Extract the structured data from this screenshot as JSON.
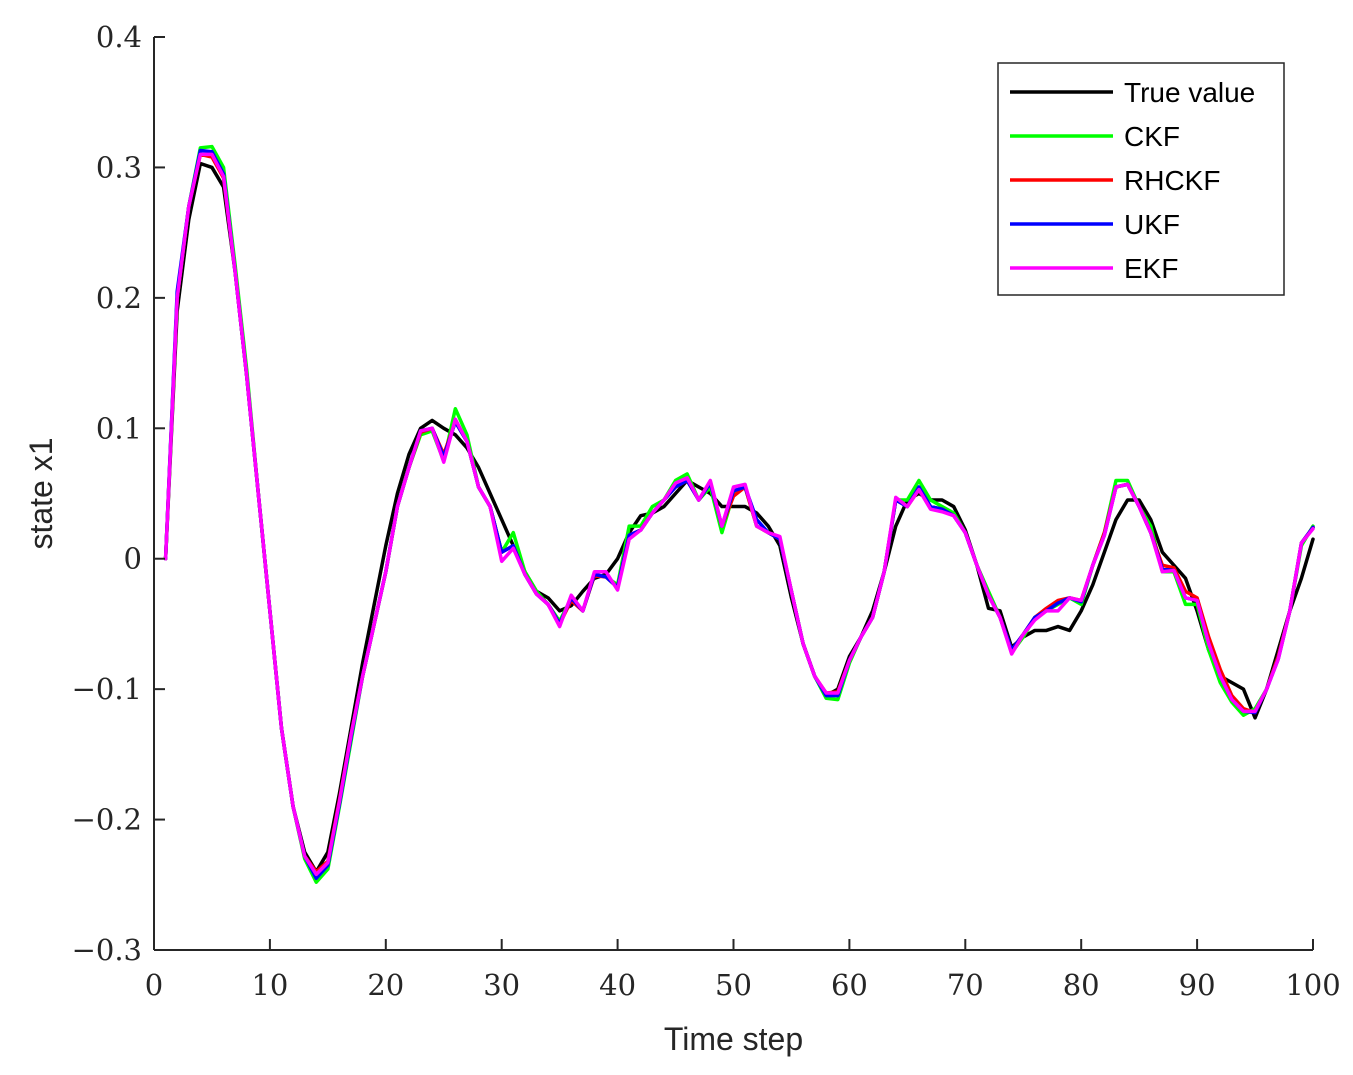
{
  "chart_data": {
    "type": "line",
    "title": "",
    "xlabel": "Time step",
    "ylabel": "state x1",
    "xlim": [
      0,
      100
    ],
    "ylim": [
      -0.3,
      0.4
    ],
    "xticks": [
      0,
      10,
      20,
      30,
      40,
      50,
      60,
      70,
      80,
      90,
      100
    ],
    "yticks": [
      -0.3,
      -0.2,
      -0.1,
      0,
      0.1,
      0.2,
      0.3,
      0.4
    ],
    "xtick_labels": [
      "0",
      "10",
      "20",
      "30",
      "40",
      "50",
      "60",
      "70",
      "80",
      "90",
      "100"
    ],
    "ytick_labels": [
      "−0.3",
      "−0.2",
      "−0.1",
      "0",
      "0.1",
      "0.2",
      "0.3",
      "0.4"
    ],
    "grid": false,
    "legend_position": "top-right",
    "x": [
      1,
      2,
      3,
      4,
      5,
      6,
      7,
      8,
      9,
      10,
      11,
      12,
      13,
      14,
      15,
      16,
      17,
      18,
      19,
      20,
      21,
      22,
      23,
      24,
      25,
      26,
      27,
      28,
      29,
      30,
      31,
      32,
      33,
      34,
      35,
      36,
      37,
      38,
      39,
      40,
      41,
      42,
      43,
      44,
      45,
      46,
      47,
      48,
      49,
      50,
      51,
      52,
      53,
      54,
      55,
      56,
      57,
      58,
      59,
      60,
      61,
      62,
      63,
      64,
      65,
      66,
      67,
      68,
      69,
      70,
      71,
      72,
      73,
      74,
      75,
      76,
      77,
      78,
      79,
      80,
      81,
      82,
      83,
      84,
      85,
      86,
      87,
      88,
      89,
      90,
      91,
      92,
      93,
      94,
      95,
      96,
      97,
      98,
      99,
      100
    ],
    "series": [
      {
        "name": "True value",
        "color": "#000000",
        "values": [
          0,
          0.19,
          0.26,
          0.303,
          0.3,
          0.285,
          0.22,
          0.14,
          0.05,
          -0.04,
          -0.13,
          -0.19,
          -0.225,
          -0.24,
          -0.225,
          -0.18,
          -0.13,
          -0.08,
          -0.035,
          0.01,
          0.05,
          0.08,
          0.1,
          0.106,
          0.1,
          0.095,
          0.085,
          0.07,
          0.05,
          0.03,
          0.01,
          -0.01,
          -0.025,
          -0.03,
          -0.04,
          -0.036,
          -0.025,
          -0.015,
          -0.012,
          0,
          0.02,
          0.033,
          0.035,
          0.04,
          0.05,
          0.06,
          0.055,
          0.05,
          0.04,
          0.04,
          0.04,
          0.035,
          0.025,
          0.01,
          -0.03,
          -0.065,
          -0.09,
          -0.105,
          -0.1,
          -0.075,
          -0.06,
          -0.04,
          -0.01,
          0.025,
          0.045,
          0.05,
          0.045,
          0.045,
          0.04,
          0.022,
          -0.005,
          -0.038,
          -0.04,
          -0.068,
          -0.06,
          -0.055,
          -0.055,
          -0.052,
          -0.055,
          -0.04,
          -0.02,
          0.005,
          0.03,
          0.045,
          0.045,
          0.03,
          0.005,
          -0.005,
          -0.015,
          -0.04,
          -0.07,
          -0.09,
          -0.095,
          -0.1,
          -0.122,
          -0.1,
          -0.07,
          -0.04,
          -0.015,
          0.015
        ]
      },
      {
        "name": "CKF",
        "color": "#00ff00",
        "values": [
          0,
          0.2,
          0.27,
          0.315,
          0.316,
          0.3,
          0.225,
          0.145,
          0.05,
          -0.04,
          -0.13,
          -0.19,
          -0.23,
          -0.248,
          -0.238,
          -0.19,
          -0.14,
          -0.09,
          -0.05,
          -0.01,
          0.04,
          0.07,
          0.095,
          0.098,
          0.075,
          0.115,
          0.095,
          0.055,
          0.04,
          0.005,
          0.02,
          -0.01,
          -0.025,
          -0.035,
          -0.048,
          -0.03,
          -0.04,
          -0.012,
          -0.014,
          -0.02,
          0.025,
          0.025,
          0.04,
          0.045,
          0.06,
          0.065,
          0.045,
          0.055,
          0.02,
          0.05,
          0.055,
          0.025,
          0.02,
          0.015,
          -0.025,
          -0.065,
          -0.09,
          -0.107,
          -0.108,
          -0.08,
          -0.06,
          -0.045,
          -0.01,
          0.045,
          0.045,
          0.06,
          0.045,
          0.04,
          0.035,
          0.02,
          -0.005,
          -0.025,
          -0.045,
          -0.072,
          -0.06,
          -0.045,
          -0.04,
          -0.035,
          -0.03,
          -0.035,
          -0.005,
          0.02,
          0.06,
          0.06,
          0.04,
          0.025,
          -0.01,
          -0.01,
          -0.035,
          -0.035,
          -0.07,
          -0.095,
          -0.11,
          -0.12,
          -0.115,
          -0.1,
          -0.075,
          -0.04,
          0.01,
          0.025
        ]
      },
      {
        "name": "RHCKF",
        "color": "#ff0000",
        "values": [
          0,
          0.2,
          0.27,
          0.31,
          0.308,
          0.292,
          0.22,
          0.14,
          0.05,
          -0.04,
          -0.13,
          -0.19,
          -0.228,
          -0.24,
          -0.232,
          -0.185,
          -0.135,
          -0.09,
          -0.05,
          -0.01,
          0.04,
          0.07,
          0.097,
          0.1,
          0.08,
          0.105,
          0.09,
          0.055,
          0.04,
          0.005,
          0.01,
          -0.012,
          -0.027,
          -0.035,
          -0.05,
          -0.032,
          -0.04,
          -0.013,
          -0.014,
          -0.022,
          0.018,
          0.022,
          0.035,
          0.045,
          0.055,
          0.06,
          0.045,
          0.058,
          0.025,
          0.048,
          0.055,
          0.025,
          0.02,
          0.015,
          -0.025,
          -0.065,
          -0.09,
          -0.103,
          -0.102,
          -0.078,
          -0.06,
          -0.045,
          -0.01,
          0.045,
          0.04,
          0.053,
          0.04,
          0.038,
          0.033,
          0.02,
          -0.005,
          -0.028,
          -0.045,
          -0.07,
          -0.058,
          -0.045,
          -0.038,
          -0.032,
          -0.03,
          -0.032,
          -0.005,
          0.02,
          0.055,
          0.057,
          0.04,
          0.02,
          -0.005,
          -0.007,
          -0.025,
          -0.03,
          -0.06,
          -0.085,
          -0.105,
          -0.115,
          -0.118,
          -0.1,
          -0.075,
          -0.04,
          0.012,
          0.024
        ]
      },
      {
        "name": "UKF",
        "color": "#0000ff",
        "values": [
          0,
          0.205,
          0.27,
          0.313,
          0.312,
          0.295,
          0.22,
          0.14,
          0.05,
          -0.04,
          -0.13,
          -0.19,
          -0.228,
          -0.245,
          -0.235,
          -0.188,
          -0.137,
          -0.09,
          -0.05,
          -0.01,
          0.04,
          0.07,
          0.098,
          0.1,
          0.078,
          0.105,
          0.09,
          0.055,
          0.04,
          0.005,
          0.01,
          -0.012,
          -0.027,
          -0.035,
          -0.05,
          -0.03,
          -0.04,
          -0.012,
          -0.014,
          -0.022,
          0.018,
          0.022,
          0.035,
          0.045,
          0.055,
          0.06,
          0.045,
          0.058,
          0.025,
          0.052,
          0.055,
          0.03,
          0.02,
          0.015,
          -0.025,
          -0.065,
          -0.09,
          -0.105,
          -0.105,
          -0.078,
          -0.06,
          -0.045,
          -0.01,
          0.045,
          0.04,
          0.055,
          0.04,
          0.038,
          0.033,
          0.02,
          -0.005,
          -0.028,
          -0.045,
          -0.07,
          -0.058,
          -0.045,
          -0.04,
          -0.034,
          -0.03,
          -0.033,
          -0.005,
          0.018,
          0.055,
          0.057,
          0.04,
          0.02,
          -0.008,
          -0.009,
          -0.03,
          -0.032,
          -0.065,
          -0.09,
          -0.108,
          -0.117,
          -0.118,
          -0.1,
          -0.077,
          -0.04,
          0.012,
          0.024
        ]
      },
      {
        "name": "EKF",
        "color": "#ff00ff",
        "values": [
          0,
          0.2,
          0.27,
          0.31,
          0.31,
          0.293,
          0.22,
          0.14,
          0.05,
          -0.04,
          -0.13,
          -0.19,
          -0.228,
          -0.242,
          -0.233,
          -0.186,
          -0.135,
          -0.09,
          -0.05,
          -0.01,
          0.04,
          0.07,
          0.098,
          0.1,
          0.074,
          0.107,
          0.09,
          0.055,
          0.04,
          -0.002,
          0.008,
          -0.012,
          -0.027,
          -0.035,
          -0.052,
          -0.028,
          -0.04,
          -0.01,
          -0.01,
          -0.024,
          0.015,
          0.022,
          0.035,
          0.045,
          0.058,
          0.062,
          0.045,
          0.06,
          0.025,
          0.055,
          0.057,
          0.025,
          0.02,
          0.017,
          -0.025,
          -0.065,
          -0.09,
          -0.103,
          -0.103,
          -0.078,
          -0.06,
          -0.045,
          -0.01,
          0.047,
          0.04,
          0.053,
          0.038,
          0.036,
          0.033,
          0.02,
          -0.005,
          -0.028,
          -0.045,
          -0.073,
          -0.058,
          -0.047,
          -0.04,
          -0.04,
          -0.03,
          -0.032,
          -0.005,
          0.018,
          0.055,
          0.057,
          0.04,
          0.02,
          -0.01,
          -0.009,
          -0.03,
          -0.032,
          -0.065,
          -0.09,
          -0.108,
          -0.117,
          -0.117,
          -0.1,
          -0.077,
          -0.04,
          0.012,
          0.023
        ]
      }
    ]
  }
}
